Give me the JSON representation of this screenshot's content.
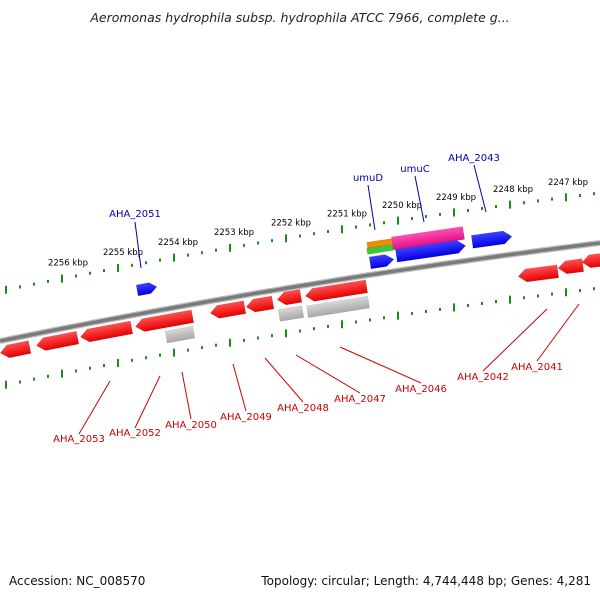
{
  "title": "Aeromonas hydrophila subsp. hydrophila ATCC 7966, complete g...",
  "footer": {
    "accession": "Accession: NC_008570",
    "summary": "Topology: circular; Length: 4,744,448 bp; Genes: 4,281"
  },
  "colors": {
    "backbone": "#7a7a7a",
    "tick": "#1e8a1e",
    "gene_forward": "#e60000",
    "gene_blue": "#0000e6",
    "gene_gray": "#a8a8a8",
    "gene_magenta": "#e0108a",
    "gene_orange": "#f08a00",
    "gene_green": "#3cc83c",
    "label_blue": "#0000aa",
    "label_red": "#cc0000"
  },
  "scale_labels": [
    "2256 kbp",
    "2255 kbp",
    "2254 kbp",
    "2253 kbp",
    "2252 kbp",
    "2251 kbp",
    "2250 kbp",
    "2249 kbp",
    "2248 kbp",
    "2247 kbp"
  ],
  "top_gene_labels": [
    "AHA_2051",
    "umuD",
    "umuC",
    "AHA_2043"
  ],
  "bottom_gene_labels": [
    "AHA_2053",
    "AHA_2052",
    "AHA_2050",
    "AHA_2049",
    "AHA_2048",
    "AHA_2047",
    "AHA_2046",
    "AHA_2042",
    "AHA_2041"
  ]
}
